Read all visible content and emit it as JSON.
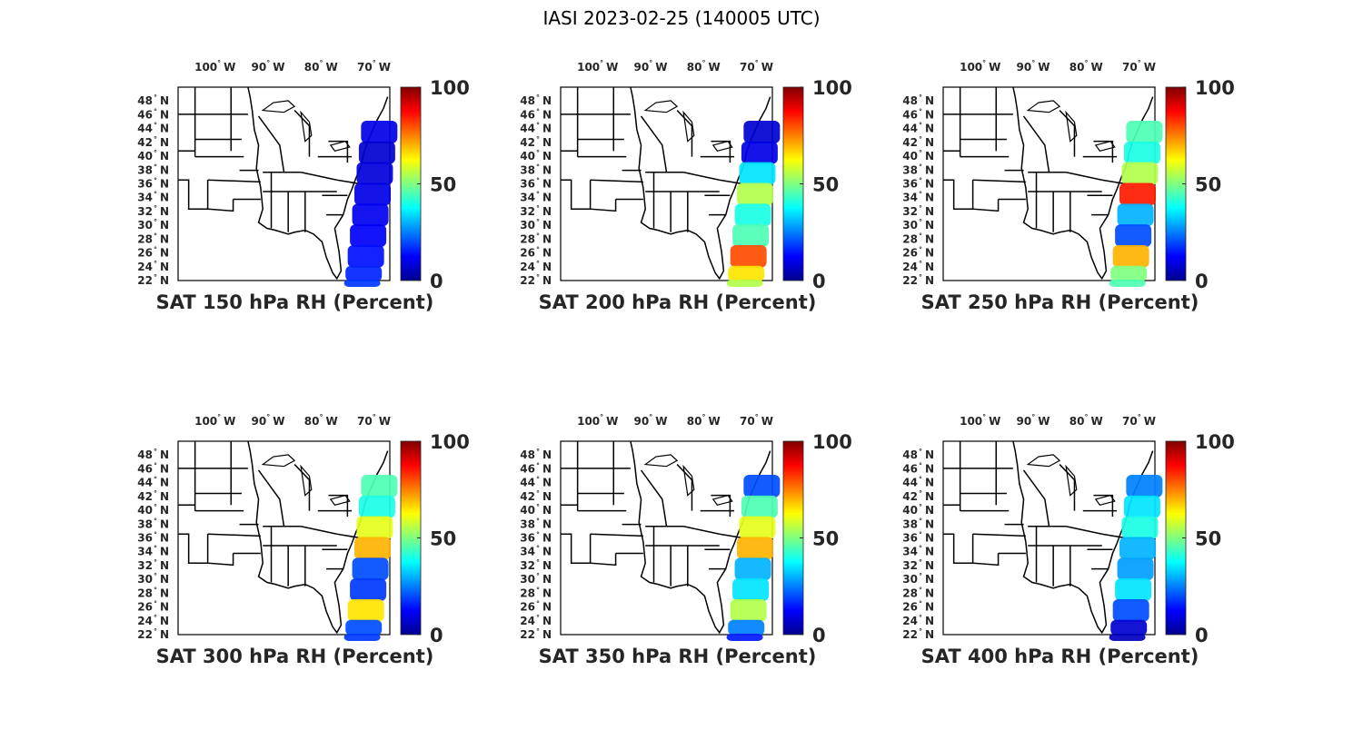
{
  "figure": {
    "title": "IASI 2023-02-25 (140005 UTC)"
  },
  "colorbar": {
    "colormap": "jet",
    "range": [
      0,
      100
    ],
    "ticks": [
      "0",
      "50",
      "100"
    ]
  },
  "map": {
    "lon_ticks": [
      {
        "lon": -100,
        "label": "100",
        "hemi": "W"
      },
      {
        "lon": -90,
        "label": "90",
        "hemi": "W"
      },
      {
        "lon": -80,
        "label": "80",
        "hemi": "W"
      },
      {
        "lon": -70,
        "label": "70",
        "hemi": "W"
      }
    ],
    "lat_ticks": [
      {
        "lat": 22,
        "label": "22",
        "hemi": "N"
      },
      {
        "lat": 24,
        "label": "24",
        "hemi": "N"
      },
      {
        "lat": 26,
        "label": "26",
        "hemi": "N"
      },
      {
        "lat": 28,
        "label": "28",
        "hemi": "N"
      },
      {
        "lat": 30,
        "label": "30",
        "hemi": "N"
      },
      {
        "lat": 32,
        "label": "32",
        "hemi": "N"
      },
      {
        "lat": 34,
        "label": "34",
        "hemi": "N"
      },
      {
        "lat": 36,
        "label": "36",
        "hemi": "N"
      },
      {
        "lat": 38,
        "label": "38",
        "hemi": "N"
      },
      {
        "lat": 40,
        "label": "40",
        "hemi": "N"
      },
      {
        "lat": 42,
        "label": "42",
        "hemi": "N"
      },
      {
        "lat": 44,
        "label": "44",
        "hemi": "N"
      },
      {
        "lat": 46,
        "label": "46",
        "hemi": "N"
      },
      {
        "lat": 48,
        "label": "48",
        "hemi": "N"
      }
    ],
    "lon_range": [
      -107,
      -67
    ],
    "lat_range": [
      22,
      50
    ]
  },
  "panels": [
    {
      "title": "SAT 150 hPa RH (Percent)",
      "swath": [
        {
          "lat": 45,
          "rh": 10
        },
        {
          "lat": 42,
          "rh": 8
        },
        {
          "lat": 39,
          "rh": 9
        },
        {
          "lat": 36,
          "rh": 10
        },
        {
          "lat": 33,
          "rh": 11
        },
        {
          "lat": 30,
          "rh": 12
        },
        {
          "lat": 27,
          "rh": 14
        },
        {
          "lat": 24,
          "rh": 16
        },
        {
          "lat": 22,
          "rh": 18
        }
      ]
    },
    {
      "title": "SAT 200 hPa RH (Percent)",
      "swath": [
        {
          "lat": 45,
          "rh": 8
        },
        {
          "lat": 42,
          "rh": 10
        },
        {
          "lat": 39,
          "rh": 35
        },
        {
          "lat": 36,
          "rh": 55
        },
        {
          "lat": 33,
          "rh": 40
        },
        {
          "lat": 30,
          "rh": 45
        },
        {
          "lat": 27,
          "rh": 80
        },
        {
          "lat": 24,
          "rh": 65
        },
        {
          "lat": 22,
          "rh": 55
        }
      ]
    },
    {
      "title": "SAT 250 hPa RH (Percent)",
      "swath": [
        {
          "lat": 45,
          "rh": 45
        },
        {
          "lat": 42,
          "rh": 40
        },
        {
          "lat": 39,
          "rh": 55
        },
        {
          "lat": 36,
          "rh": 85
        },
        {
          "lat": 33,
          "rh": 30
        },
        {
          "lat": 30,
          "rh": 20
        },
        {
          "lat": 27,
          "rh": 70
        },
        {
          "lat": 24,
          "rh": 50
        },
        {
          "lat": 22,
          "rh": 45
        }
      ]
    },
    {
      "title": "SAT 300 hPa RH (Percent)",
      "swath": [
        {
          "lat": 45,
          "rh": 45
        },
        {
          "lat": 42,
          "rh": 40
        },
        {
          "lat": 39,
          "rh": 60
        },
        {
          "lat": 36,
          "rh": 70
        },
        {
          "lat": 33,
          "rh": 20
        },
        {
          "lat": 30,
          "rh": 18
        },
        {
          "lat": 27,
          "rh": 65
        },
        {
          "lat": 24,
          "rh": 20
        },
        {
          "lat": 22,
          "rh": 18
        }
      ]
    },
    {
      "title": "SAT 350 hPa RH (Percent)",
      "swath": [
        {
          "lat": 45,
          "rh": 20
        },
        {
          "lat": 42,
          "rh": 45
        },
        {
          "lat": 39,
          "rh": 60
        },
        {
          "lat": 36,
          "rh": 70
        },
        {
          "lat": 33,
          "rh": 30
        },
        {
          "lat": 30,
          "rh": 35
        },
        {
          "lat": 27,
          "rh": 55
        },
        {
          "lat": 24,
          "rh": 25
        },
        {
          "lat": 22,
          "rh": 15
        }
      ]
    },
    {
      "title": "SAT 400 hPa RH (Percent)",
      "swath": [
        {
          "lat": 45,
          "rh": 25
        },
        {
          "lat": 42,
          "rh": 35
        },
        {
          "lat": 39,
          "rh": 40
        },
        {
          "lat": 36,
          "rh": 30
        },
        {
          "lat": 33,
          "rh": 28
        },
        {
          "lat": 30,
          "rh": 35
        },
        {
          "lat": 27,
          "rh": 20
        },
        {
          "lat": 24,
          "rh": 8
        },
        {
          "lat": 22,
          "rh": 6
        }
      ]
    }
  ]
}
